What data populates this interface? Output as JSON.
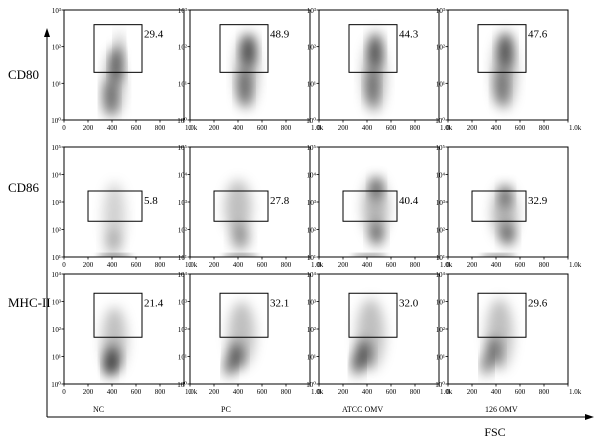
{
  "chart_data": {
    "type": "scatter",
    "subtype": "flow-cytometry-density-plot-grid",
    "xlabel": "FSC",
    "x_ticks": [
      "0",
      "200",
      "400",
      "600",
      "800",
      "1.0k"
    ],
    "xlim": [
      0,
      1000
    ],
    "columns": [
      "NC",
      "PC",
      "ATCC OMV",
      "126 OMV"
    ],
    "rows": [
      {
        "label": "CD80",
        "y_ticks": [
          "10⁰",
          "10¹",
          "10²",
          "10³"
        ],
        "y_decades": 3,
        "gate": {
          "x0": 250,
          "x1": 650,
          "y0": 1.3,
          "y1": 2.6
        },
        "percentages": [
          "29.4",
          "48.9",
          "44.3",
          "47.6"
        ]
      },
      {
        "label": "CD86",
        "y_ticks": [
          "10¹",
          "10²",
          "10³",
          "10⁴",
          "10⁵"
        ],
        "y_decades": 4,
        "gate": {
          "x0": 200,
          "x1": 650,
          "y0": 1.3,
          "y1": 2.4
        },
        "percentages": [
          "5.8",
          "27.8",
          "40.4",
          "32.9"
        ]
      },
      {
        "label": "MHC-II",
        "y_ticks": [
          "10⁰",
          "10¹",
          "10²",
          "10³",
          "10⁴"
        ],
        "y_decades": 4,
        "gate": {
          "x0": 250,
          "x1": 650,
          "y0": 1.7,
          "y1": 3.3
        },
        "percentages": [
          "21.4",
          "32.1",
          "32.0",
          "29.6"
        ]
      }
    ],
    "grid": false,
    "colors": {
      "density": "#000000",
      "frame": "#000000",
      "background": "#ffffff"
    }
  }
}
